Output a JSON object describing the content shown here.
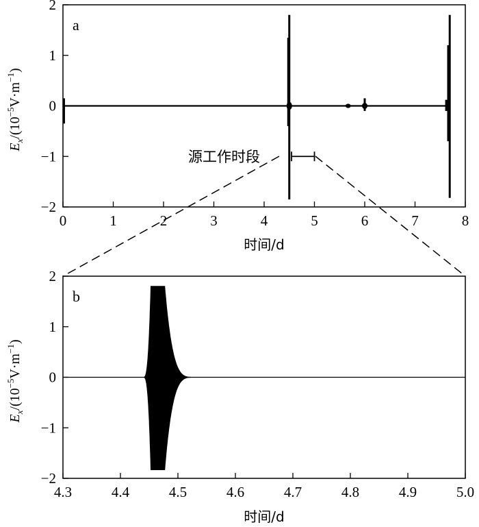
{
  "chart_data": [
    {
      "type": "line",
      "panel": "a",
      "xlabel": "时间/d",
      "ylabel_main": "E",
      "ylabel_sub": "x",
      "ylabel_rest": "/(10",
      "ylabel_exp": "−5",
      "ylabel_unit": "V·m",
      "ylabel_unit_exp": "−1",
      "xlim": [
        0,
        8
      ],
      "ylim": [
        -2,
        2
      ],
      "x_ticks": [
        "0",
        "1",
        "2",
        "3",
        "4",
        "5",
        "6",
        "7",
        "8"
      ],
      "y_ticks": [
        "−2",
        "−1",
        "0",
        "1",
        "2"
      ],
      "annotation": {
        "text": "源工作时段",
        "x_start": 4.3,
        "x_end": 5.0,
        "y": -1
      },
      "baseline": 0,
      "spikes": [
        {
          "x": 0.02,
          "ymin": -0.35,
          "ymax": 0.15
        },
        {
          "x": 4.5,
          "ymin": -1.85,
          "ymax": 1.8
        },
        {
          "x": 4.48,
          "ymin": -0.4,
          "ymax": 1.35
        },
        {
          "x": 5.67,
          "ymin": -0.04,
          "ymax": 0.04
        },
        {
          "x": 6.0,
          "ymin": -0.1,
          "ymax": 0.15
        },
        {
          "x": 7.62,
          "ymin": -0.1,
          "ymax": 0.12
        },
        {
          "x": 7.66,
          "ymin": -0.7,
          "ymax": 1.2
        },
        {
          "x": 7.69,
          "ymin": -1.82,
          "ymax": 1.8
        }
      ]
    },
    {
      "type": "line",
      "panel": "b",
      "xlabel": "时间/d",
      "ylabel_main": "E",
      "ylabel_sub": "x",
      "ylabel_rest": "/(10",
      "ylabel_exp": "−5",
      "ylabel_unit": "V·m",
      "ylabel_unit_exp": "−1",
      "xlim": [
        4.3,
        5.0
      ],
      "ylim": [
        -2,
        2
      ],
      "x_ticks": [
        "4.3",
        "4.4",
        "4.5",
        "4.6",
        "4.7",
        "4.8",
        "4.9",
        "5.0"
      ],
      "y_ticks": [
        "−2",
        "−1",
        "0",
        "1",
        "2"
      ],
      "baseline": 0,
      "burst": {
        "x_start": 4.44,
        "x_plateau_start": 4.453,
        "x_plateau_end": 4.477,
        "x_end": 4.53,
        "amplitude_top": 1.8,
        "amplitude_bottom": -1.83
      }
    }
  ]
}
